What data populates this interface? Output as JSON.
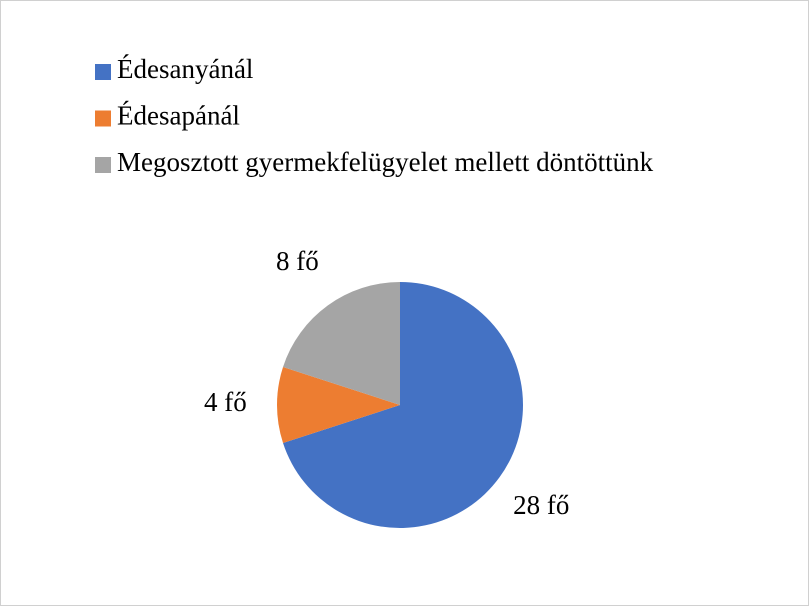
{
  "chart_data": {
    "type": "pie",
    "categories": [
      "Édesanyánál",
      "Édesapánál",
      "Megosztott gyermekfelügyelet mellett döntöttünk"
    ],
    "values": [
      28,
      4,
      8
    ],
    "value_labels": [
      "28 fő",
      "4 fő",
      "8 fő"
    ],
    "colors": [
      "#4472c4",
      "#ed7d31",
      "#a5a5a5"
    ],
    "legend": "top-left"
  }
}
